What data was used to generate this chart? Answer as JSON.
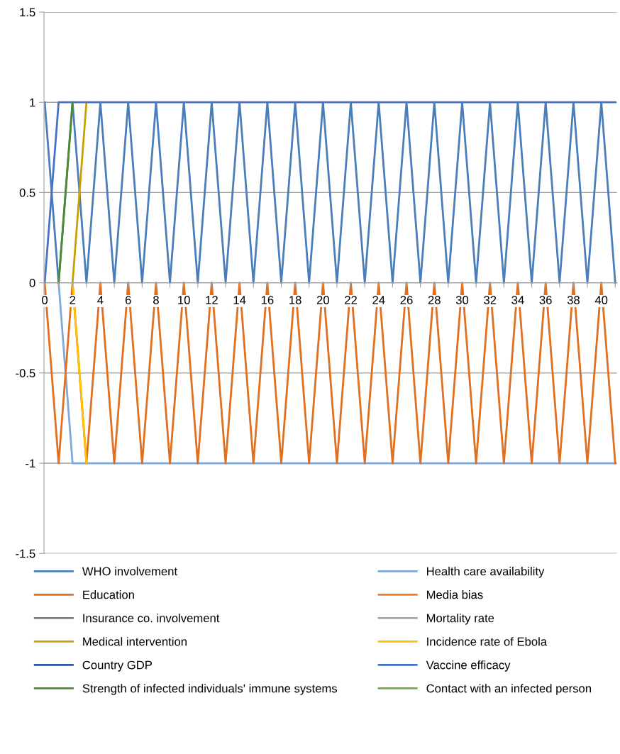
{
  "chart_data": {
    "type": "line",
    "categories": [
      "0",
      null,
      "2",
      null,
      "4",
      null,
      "6",
      null,
      "8",
      null,
      "10",
      null,
      "12",
      null,
      "14",
      null,
      "16",
      null,
      "18",
      null,
      "20",
      null,
      "22",
      null,
      "24",
      null,
      "26",
      null,
      "28",
      null,
      "30",
      null,
      "32",
      null,
      "34",
      null,
      "36",
      null,
      "38",
      null,
      "40",
      null
    ],
    "ylim": [
      -1.5,
      1.5
    ],
    "yticks": [
      -1.5,
      -1,
      -0.5,
      0,
      0.5,
      1,
      1.5
    ],
    "grid": "y",
    "legend": "bottom",
    "marker": "none",
    "line_style": "solid",
    "series": [
      {
        "name": "WHO involvement",
        "color": "#4a7ebb",
        "values": [
          1,
          0,
          1,
          0,
          1,
          0,
          1,
          0,
          1,
          0,
          1,
          0,
          1,
          0,
          1,
          0,
          1,
          0,
          1,
          0,
          1,
          0,
          1,
          0,
          1,
          0,
          1,
          0,
          1,
          0,
          1,
          0,
          1,
          0,
          1,
          0,
          1,
          0,
          1,
          0,
          1,
          0
        ]
      },
      {
        "name": "Health care availability",
        "color": "#7fa9dc",
        "values": [
          null,
          0,
          -1,
          -1,
          -1,
          -1,
          -1,
          -1,
          -1,
          -1,
          -1,
          -1,
          -1,
          -1,
          -1,
          -1,
          -1,
          -1,
          -1,
          -1,
          -1,
          -1,
          -1,
          -1,
          -1,
          -1,
          -1,
          -1,
          -1,
          -1,
          -1,
          -1,
          -1,
          -1,
          -1,
          -1,
          -1,
          -1,
          -1,
          -1,
          -1,
          -1
        ]
      },
      {
        "name": "Education",
        "color": "#e07020",
        "values": [
          0,
          -1,
          0,
          -1,
          0,
          -1,
          0,
          -1,
          0,
          -1,
          0,
          -1,
          0,
          -1,
          0,
          -1,
          0,
          -1,
          0,
          -1,
          0,
          -1,
          0,
          -1,
          0,
          -1,
          0,
          -1,
          0,
          -1,
          0,
          -1,
          0,
          -1,
          0,
          -1,
          0,
          -1,
          0,
          -1,
          0,
          -1
        ]
      },
      {
        "name": "Media bias",
        "color": "#ed7d31",
        "values": [
          null,
          null,
          null,
          null,
          null,
          null,
          null,
          null,
          null,
          null,
          null,
          null,
          null,
          null,
          null,
          null,
          null,
          null,
          null,
          null,
          null,
          null,
          null,
          null,
          null,
          null,
          null,
          null,
          null,
          null,
          null,
          null,
          null,
          null,
          null,
          null,
          null,
          null,
          null,
          null,
          null,
          null
        ]
      },
      {
        "name": "Insurance co. involvement",
        "color": "#7f7f7f",
        "values": [
          null,
          null,
          null,
          null,
          null,
          null,
          null,
          null,
          null,
          null,
          null,
          null,
          null,
          null,
          null,
          null,
          null,
          null,
          null,
          null,
          null,
          null,
          null,
          null,
          null,
          null,
          null,
          null,
          null,
          null,
          null,
          null,
          null,
          null,
          null,
          null,
          null,
          null,
          null,
          null,
          null,
          null
        ]
      },
      {
        "name": "Mortality rate",
        "color": "#a5a5a5",
        "values": [
          null,
          null,
          null,
          null,
          null,
          null,
          null,
          null,
          null,
          null,
          null,
          null,
          null,
          null,
          null,
          null,
          null,
          null,
          null,
          null,
          null,
          null,
          null,
          null,
          null,
          null,
          null,
          null,
          null,
          null,
          null,
          null,
          null,
          null,
          null,
          null,
          null,
          null,
          null,
          null,
          null,
          null
        ]
      },
      {
        "name": "Medical intervention",
        "color": "#c9a000",
        "values": [
          null,
          null,
          0,
          1,
          null,
          null,
          null,
          null,
          null,
          null,
          null,
          null,
          null,
          null,
          null,
          null,
          null,
          null,
          null,
          null,
          null,
          null,
          null,
          null,
          null,
          null,
          null,
          null,
          null,
          null,
          null,
          null,
          null,
          null,
          null,
          null,
          null,
          null,
          null,
          null,
          null,
          null
        ]
      },
      {
        "name": "Incidence rate of Ebola",
        "color": "#ffc000",
        "values": [
          null,
          null,
          0,
          -1,
          null,
          null,
          null,
          null,
          null,
          null,
          null,
          null,
          null,
          null,
          null,
          null,
          null,
          null,
          null,
          null,
          null,
          null,
          null,
          null,
          null,
          null,
          null,
          null,
          null,
          null,
          null,
          null,
          null,
          null,
          null,
          null,
          null,
          null,
          null,
          null,
          null,
          null
        ]
      },
      {
        "name": "Country GDP",
        "color": "#2f55a4",
        "values": [
          null,
          null,
          null,
          null,
          null,
          null,
          null,
          null,
          null,
          null,
          null,
          null,
          null,
          null,
          null,
          null,
          null,
          null,
          null,
          null,
          null,
          null,
          null,
          null,
          null,
          null,
          null,
          null,
          null,
          null,
          null,
          null,
          null,
          null,
          null,
          null,
          null,
          null,
          null,
          null,
          null,
          null
        ]
      },
      {
        "name": "Vaccine efficacy",
        "color": "#4472c4",
        "values": [
          0,
          1,
          1,
          1,
          1,
          1,
          1,
          1,
          1,
          1,
          1,
          1,
          1,
          1,
          1,
          1,
          1,
          1,
          1,
          1,
          1,
          1,
          1,
          1,
          1,
          1,
          1,
          1,
          1,
          1,
          1,
          1,
          1,
          1,
          1,
          1,
          1,
          1,
          1,
          1,
          1,
          1
        ]
      },
      {
        "name": "Strength of infected individuals' immune systems",
        "color": "#4e8a2e",
        "values": [
          null,
          0,
          1,
          null,
          null,
          null,
          null,
          null,
          null,
          null,
          null,
          null,
          null,
          null,
          null,
          null,
          null,
          null,
          null,
          null,
          null,
          null,
          null,
          null,
          null,
          null,
          null,
          null,
          null,
          null,
          null,
          null,
          null,
          null,
          null,
          null,
          null,
          null,
          null,
          null,
          null,
          null
        ]
      },
      {
        "name": "Contact with an infected person",
        "color": "#70ad47",
        "values": [
          null,
          null,
          null,
          null,
          null,
          null,
          null,
          null,
          null,
          null,
          null,
          null,
          null,
          null,
          null,
          null,
          null,
          null,
          null,
          null,
          null,
          null,
          null,
          null,
          null,
          null,
          null,
          null,
          null,
          null,
          null,
          null,
          null,
          null,
          null,
          null,
          null,
          null,
          null,
          null,
          null,
          null
        ]
      }
    ]
  }
}
